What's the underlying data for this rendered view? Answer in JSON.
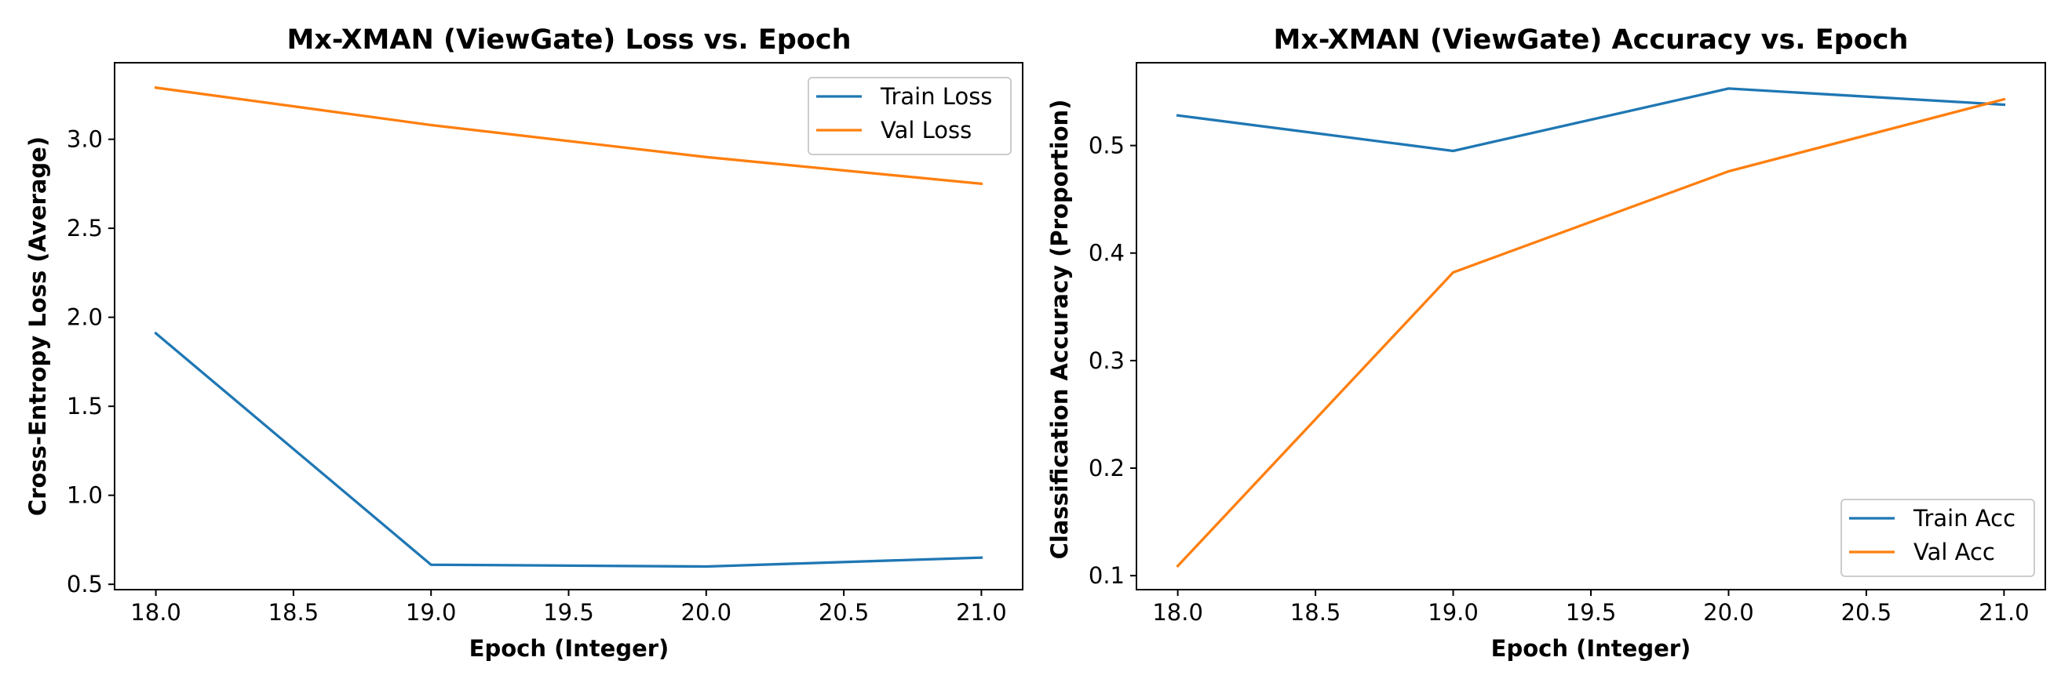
{
  "chart_data": [
    {
      "type": "line",
      "title": "Mx-XMAN (ViewGate) Loss vs. Epoch",
      "xlabel": "Epoch (Integer)",
      "ylabel": "Cross-Entropy Loss (Average)",
      "x": [
        18.0,
        19.0,
        20.0,
        21.0
      ],
      "xlim": [
        17.85,
        21.15
      ],
      "ylim": [
        0.47,
        3.43
      ],
      "xticks": [
        "18.0",
        "18.5",
        "19.0",
        "19.5",
        "20.0",
        "20.5",
        "21.0"
      ],
      "xtick_values": [
        18.0,
        18.5,
        19.0,
        19.5,
        20.0,
        20.5,
        21.0
      ],
      "yticks": [
        "0.5",
        "1.0",
        "1.5",
        "2.0",
        "2.5",
        "3.0"
      ],
      "ytick_values": [
        0.5,
        1.0,
        1.5,
        2.0,
        2.5,
        3.0
      ],
      "grid": false,
      "legend_position": "top-right",
      "series": [
        {
          "name": "Train Loss",
          "color": "#1f77b4",
          "values": [
            1.91,
            0.61,
            0.6,
            0.65
          ]
        },
        {
          "name": "Val Loss",
          "color": "#ff7f0e",
          "values": [
            3.29,
            3.08,
            2.9,
            2.75
          ]
        }
      ]
    },
    {
      "type": "line",
      "title": "Mx-XMAN (ViewGate) Accuracy vs. Epoch",
      "xlabel": "Epoch (Integer)",
      "ylabel": "Classification Accuracy (Proportion)",
      "x": [
        18.0,
        19.0,
        20.0,
        21.0
      ],
      "xlim": [
        17.85,
        21.15
      ],
      "ylim": [
        0.087,
        0.577
      ],
      "xticks": [
        "18.0",
        "18.5",
        "19.0",
        "19.5",
        "20.0",
        "20.5",
        "21.0"
      ],
      "xtick_values": [
        18.0,
        18.5,
        19.0,
        19.5,
        20.0,
        20.5,
        21.0
      ],
      "yticks": [
        "0.1",
        "0.2",
        "0.3",
        "0.4",
        "0.5"
      ],
      "ytick_values": [
        0.1,
        0.2,
        0.3,
        0.4,
        0.5
      ],
      "grid": false,
      "legend_position": "bottom-right",
      "series": [
        {
          "name": "Train Acc",
          "color": "#1f77b4",
          "values": [
            0.528,
            0.495,
            0.553,
            0.538
          ]
        },
        {
          "name": "Val Acc",
          "color": "#ff7f0e",
          "values": [
            0.109,
            0.382,
            0.476,
            0.543
          ]
        }
      ]
    }
  ]
}
